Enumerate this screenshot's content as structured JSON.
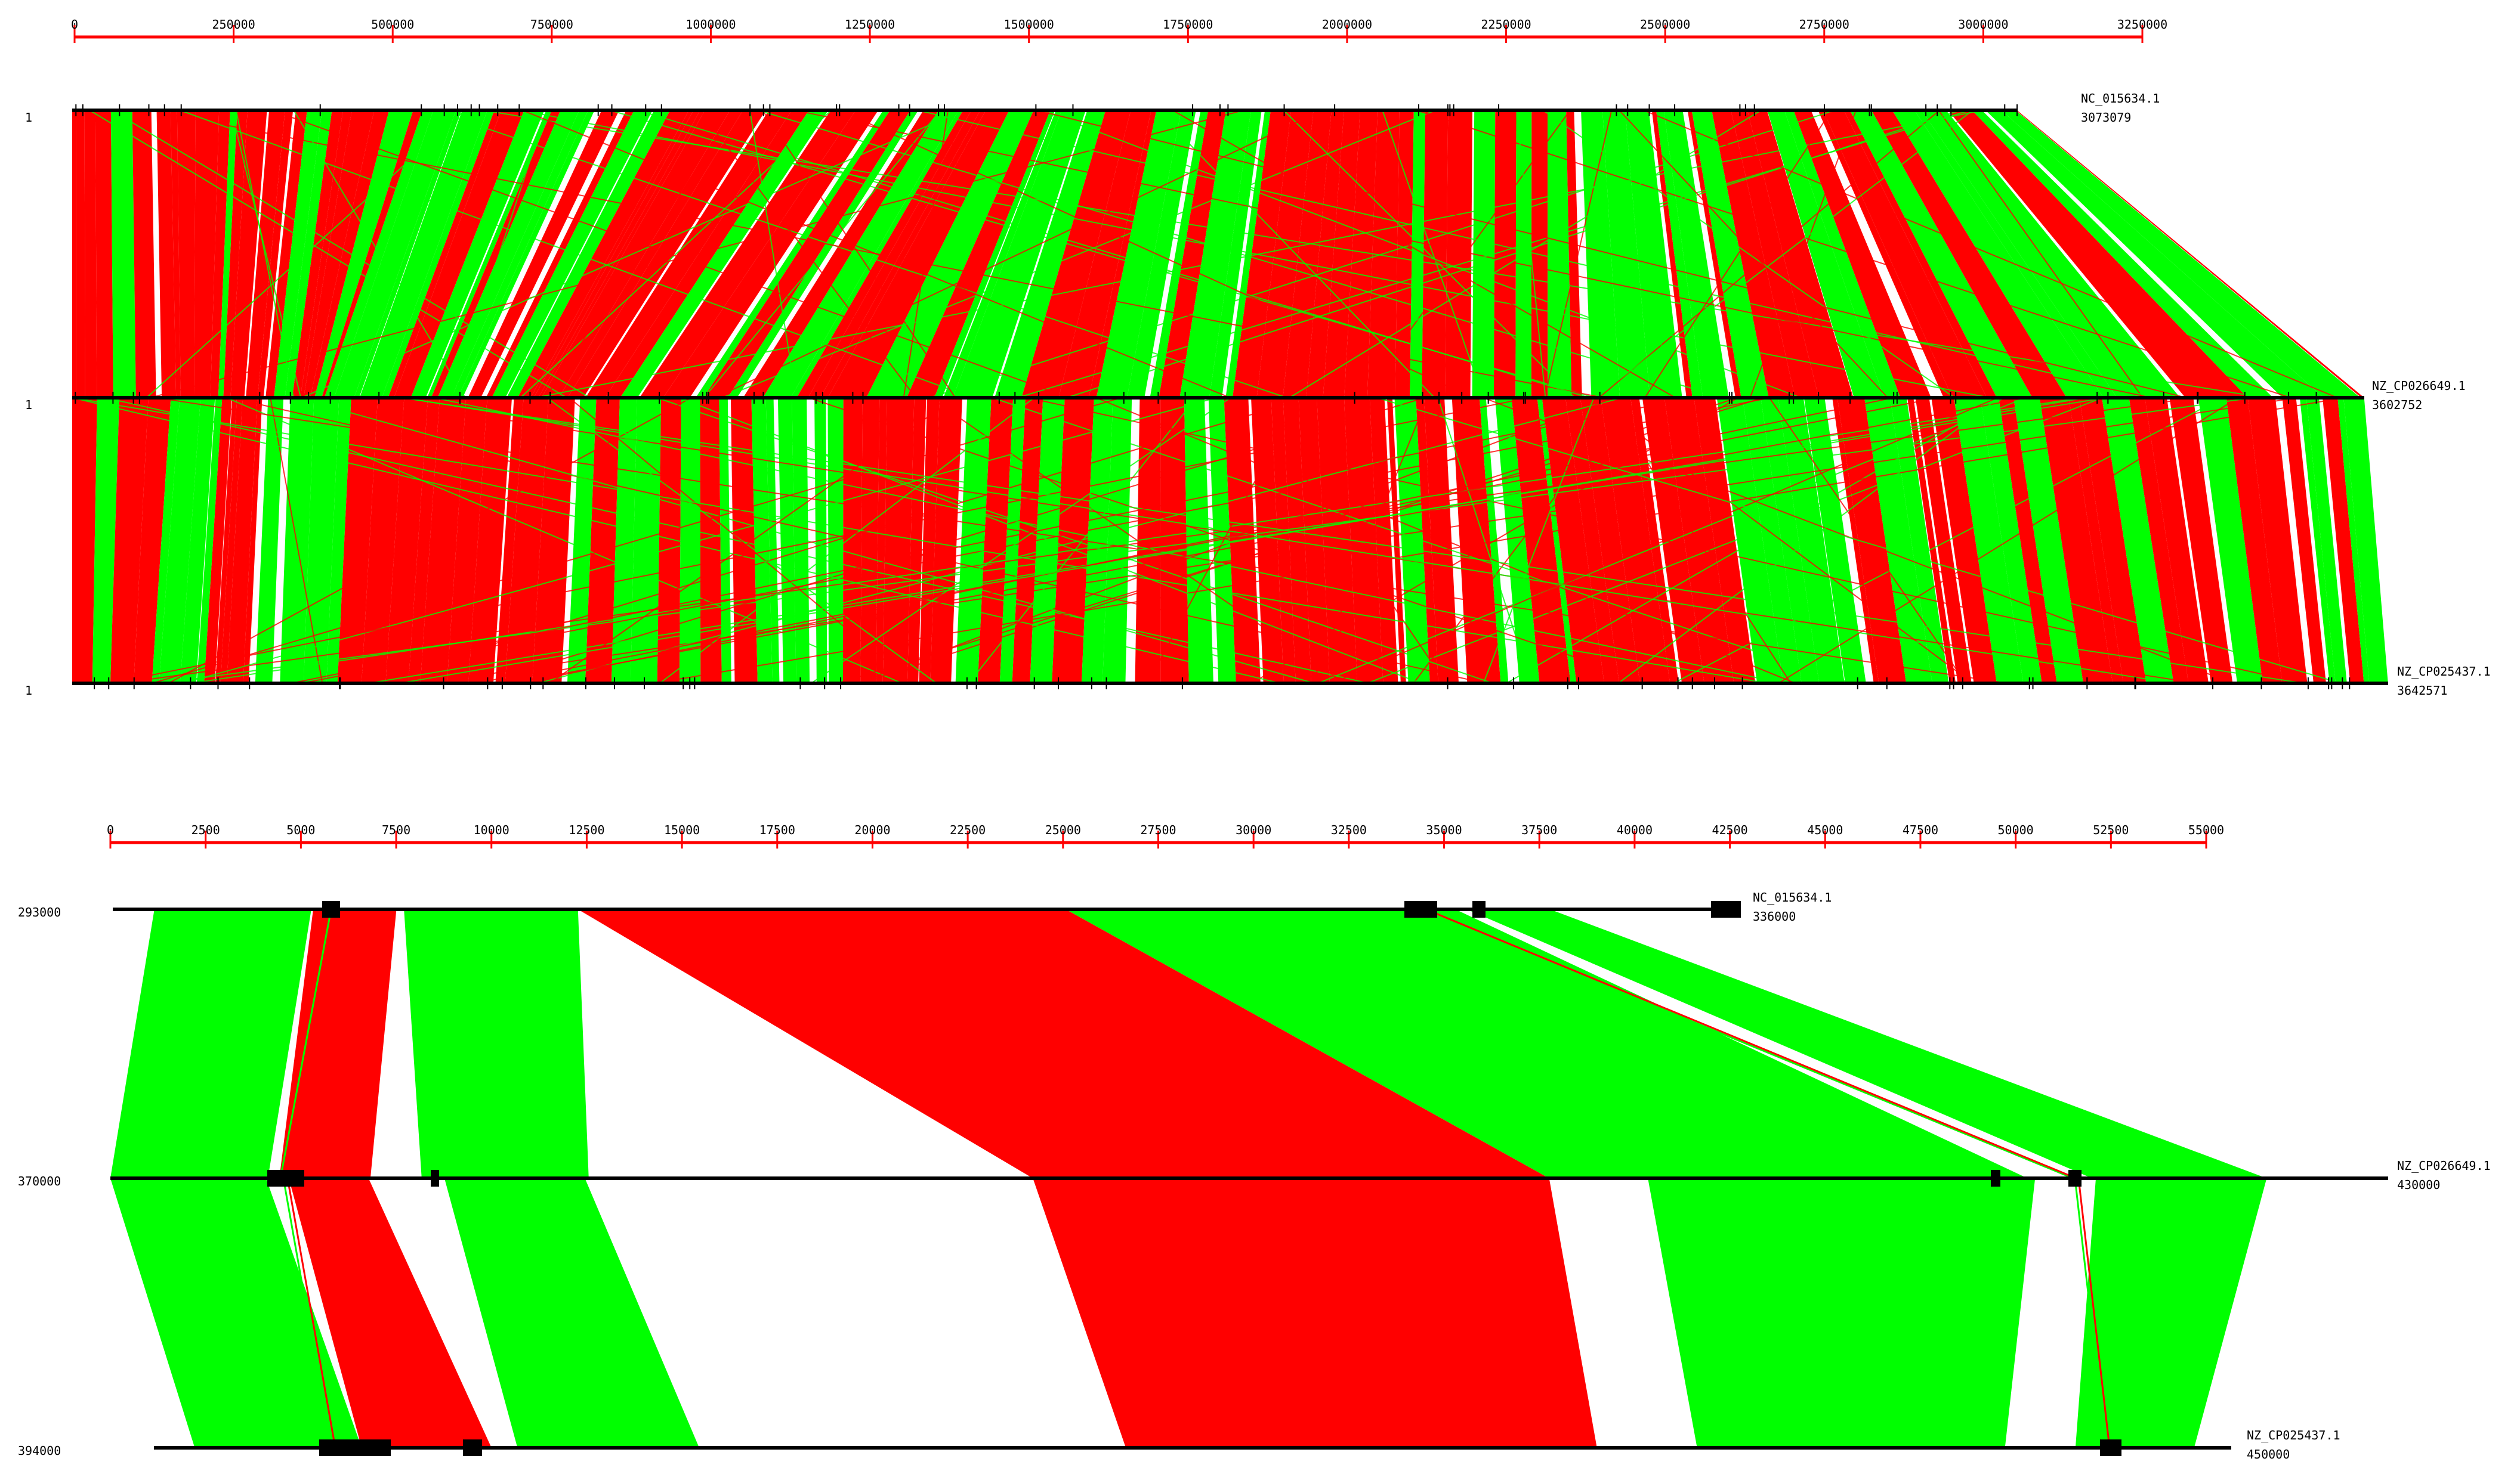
{
  "colors": {
    "same_strand": "#00ff00",
    "inverted": "#ff0000",
    "ruler": "#ff0000",
    "genome_line": "#000000",
    "feature": "#000000"
  },
  "top_panel": {
    "ruler": {
      "max": 3250000,
      "ticks": [
        "0",
        "250000",
        "500000",
        "750000",
        "1000000",
        "1250000",
        "1500000",
        "1750000",
        "2000000",
        "2250000",
        "2500000",
        "2750000",
        "3000000",
        "3250000"
      ]
    },
    "tracks": [
      {
        "id": "NC_015634.1",
        "length": "3073079",
        "start_label": "1",
        "length_bp": 3073079
      },
      {
        "id": "NZ_CP026649.1",
        "length": "3602752",
        "start_label": "1",
        "length_bp": 3602752
      },
      {
        "id": "NZ_CP025437.1",
        "length": "3642571",
        "start_label": "1",
        "length_bp": 3642571
      }
    ]
  },
  "bottom_panel": {
    "ruler": {
      "max": 55000,
      "ticks": [
        "0",
        "2500",
        "5000",
        "7500",
        "10000",
        "12500",
        "15000",
        "17500",
        "20000",
        "22500",
        "25000",
        "27500",
        "30000",
        "32500",
        "35000",
        "37500",
        "40000",
        "42500",
        "45000",
        "47500",
        "50000",
        "52500",
        "55000"
      ]
    },
    "tracks": [
      {
        "id": "NC_015634.1",
        "start": "293000",
        "end": "336000"
      },
      {
        "id": "NZ_CP026649.1",
        "start": "370000",
        "end": "430000"
      },
      {
        "id": "NZ_CP025437.1",
        "start": "394000",
        "end": "450000"
      }
    ],
    "matches": [
      {
        "pair": "1-2",
        "orientation": "forward",
        "a": [
          1100,
          5250
        ],
        "b": [
          0,
          4150
        ]
      },
      {
        "pair": "1-2",
        "orientation": "inverted",
        "a": [
          5300,
          7500
        ],
        "b": [
          4450,
          6850
        ]
      },
      {
        "pair": "1-2",
        "orientation": "forward",
        "a": [
          7700,
          12300
        ],
        "b": [
          8200,
          12600
        ]
      },
      {
        "pair": "1-2",
        "orientation": "inverted",
        "a": [
          12300,
          25200
        ],
        "b": [
          24300,
          37900
        ]
      },
      {
        "pair": "1-2",
        "orientation": "forward",
        "a": [
          25200,
          35500
        ],
        "b": [
          37900,
          50500
        ]
      },
      {
        "pair": "1-2",
        "orientation": "forward",
        "a": [
          35800,
          38000
        ],
        "b": [
          52200,
          56800
        ]
      },
      {
        "pair": "2-3",
        "orientation": "forward",
        "a": [
          0,
          4100
        ],
        "b": [
          1100,
          5600
        ]
      },
      {
        "pair": "2-3",
        "orientation": "inverted",
        "a": [
          4700,
          6800
        ],
        "b": [
          5600,
          9100
        ]
      },
      {
        "pair": "2-3",
        "orientation": "forward",
        "a": [
          8800,
          12500
        ],
        "b": [
          9800,
          14700
        ]
      },
      {
        "pair": "2-3",
        "orientation": "inverted",
        "a": [
          24300,
          37900
        ],
        "b": [
          26200,
          38900
        ]
      },
      {
        "pair": "2-3",
        "orientation": "forward",
        "a": [
          40500,
          50700
        ],
        "b": [
          41600,
          49900
        ]
      },
      {
        "pair": "2-3",
        "orientation": "forward",
        "a": [
          52300,
          56800
        ],
        "b": [
          51800,
          55000
        ]
      }
    ]
  }
}
